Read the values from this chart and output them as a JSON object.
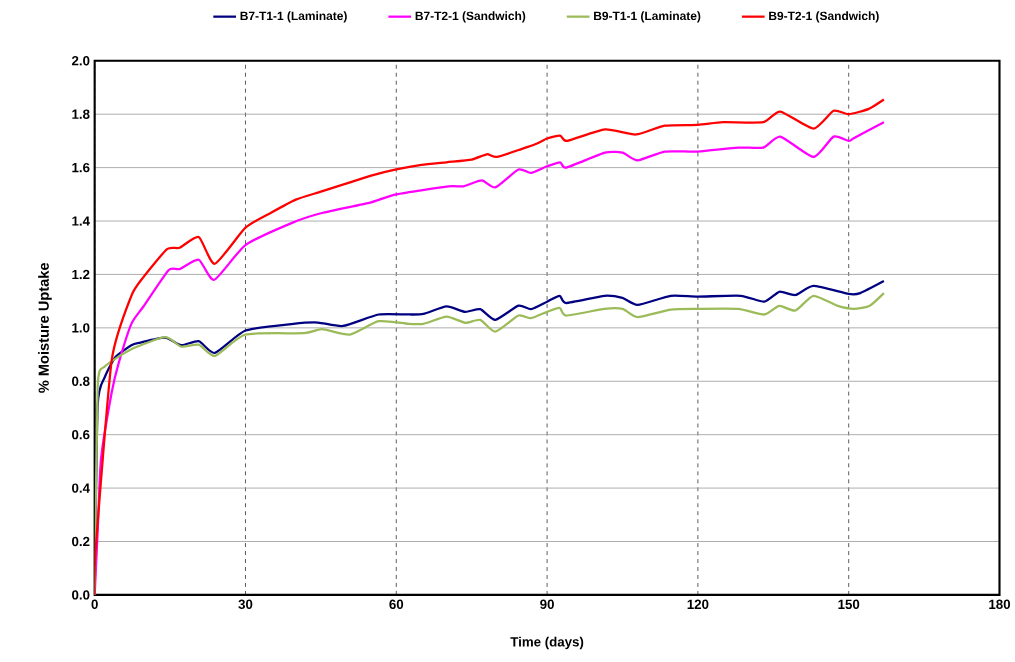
{
  "chart_data": {
    "type": "line",
    "xlabel": "Time (days)",
    "ylabel": "% Moisture Uptake",
    "xlim": [
      0,
      180
    ],
    "xticks": [
      0,
      30,
      60,
      90,
      120,
      150,
      180
    ],
    "ylim": [
      0,
      2.0
    ],
    "yticks": [
      {
        "value": 0,
        "label": "0.0"
      },
      {
        "value": 0.2,
        "label": "0.2"
      },
      {
        "value": 0.4,
        "label": "0.4"
      },
      {
        "value": 0.6,
        "label": "0.6"
      },
      {
        "value": 0.8,
        "label": "0.8"
      },
      {
        "value": 1.0,
        "label": "1.0"
      },
      {
        "value": 1.2,
        "label": "1.2"
      },
      {
        "value": 1.4,
        "label": "1.4"
      },
      {
        "value": 1.6,
        "label": "1.6"
      },
      {
        "value": 1.8,
        "label": "1.8"
      },
      {
        "value": 2.0,
        "label": "2.0"
      }
    ],
    "grid": true,
    "legend": "top",
    "marker": "none",
    "line_style": "solid",
    "series": [
      {
        "name": "B7-T1-1 (Laminate)",
        "color": "#000080",
        "x": [
          0,
          0.6,
          2,
          4.1,
          7.3,
          9.1,
          14,
          17.2,
          20.7,
          23.9,
          30,
          39.5,
          44.4,
          49.4,
          56.5,
          62.4,
          65.4,
          70,
          73.7,
          76.7,
          79.7,
          84.3,
          86.8,
          90,
          92.5,
          93.8,
          101.4,
          105,
          108,
          114.6,
          120,
          128.5,
          133.2,
          136.2,
          139.4,
          143,
          150,
          152.3,
          157
        ],
        "values": [
          0,
          0.71,
          0.815,
          0.89,
          0.935,
          0.945,
          0.963,
          0.935,
          0.95,
          0.906,
          0.99,
          1.015,
          1.02,
          1.007,
          1.05,
          1.05,
          1.052,
          1.08,
          1.06,
          1.07,
          1.03,
          1.083,
          1.07,
          1.098,
          1.12,
          1.093,
          1.12,
          1.112,
          1.086,
          1.12,
          1.117,
          1.12,
          1.098,
          1.135,
          1.123,
          1.157,
          1.127,
          1.13,
          1.175
        ]
      },
      {
        "name": "B7-T2-1 (Sandwich)",
        "color": "#ff00ff",
        "x": [
          0,
          0.6,
          1.27,
          3.4,
          4.8,
          7.3,
          9.7,
          14.7,
          16.9,
          20.7,
          23.8,
          30,
          39.5,
          45.2,
          55,
          60,
          70.4,
          73.4,
          77,
          79.7,
          84.3,
          86.8,
          90,
          92.6,
          93.8,
          101.5,
          105,
          108,
          113.4,
          120,
          128,
          133,
          136.4,
          143,
          147,
          150,
          151,
          157
        ],
        "values": [
          0,
          0.24,
          0.51,
          0.76,
          0.87,
          1.015,
          1.08,
          1.216,
          1.22,
          1.255,
          1.18,
          1.31,
          1.395,
          1.43,
          1.47,
          1.5,
          1.53,
          1.53,
          1.552,
          1.526,
          1.593,
          1.58,
          1.605,
          1.62,
          1.6,
          1.656,
          1.656,
          1.627,
          1.66,
          1.66,
          1.675,
          1.675,
          1.716,
          1.64,
          1.716,
          1.7,
          1.71,
          1.77
        ]
      },
      {
        "name": "B9-T1-1 (Laminate)",
        "color": "#9bbb59",
        "x": [
          0,
          0.6,
          2,
          7.3,
          14,
          17.2,
          20.7,
          23.9,
          30,
          41.6,
          45.2,
          50.8,
          56.5,
          62.4,
          65.4,
          70,
          73.7,
          76.7,
          79.7,
          84.3,
          86.8,
          90,
          92.5,
          93.8,
          101.4,
          105,
          108,
          114.6,
          120,
          128,
          133.2,
          136.2,
          139.4,
          143,
          147.7,
          151,
          154.2,
          157
        ],
        "values": [
          0,
          0.78,
          0.855,
          0.92,
          0.965,
          0.93,
          0.937,
          0.895,
          0.975,
          0.98,
          0.995,
          0.975,
          1.025,
          1.015,
          1.015,
          1.042,
          1.019,
          1.03,
          0.986,
          1.046,
          1.036,
          1.06,
          1.075,
          1.046,
          1.071,
          1.071,
          1.04,
          1.068,
          1.071,
          1.071,
          1.05,
          1.082,
          1.065,
          1.12,
          1.083,
          1.071,
          1.083,
          1.13
        ]
      },
      {
        "name": "B9-T2-1 (Sandwich)",
        "color": "#ff0000",
        "x": [
          0,
          0.2,
          3.4,
          7.3,
          9.7,
          14.4,
          16.9,
          20.7,
          23.9,
          30,
          35,
          40,
          45,
          50,
          55,
          60,
          65,
          70,
          75,
          78,
          80,
          85,
          88,
          90,
          92.6,
          94,
          101.5,
          107.7,
          113.4,
          120,
          125,
          133,
          136.4,
          143,
          147,
          150,
          154,
          157
        ],
        "values": [
          0,
          0.17,
          0.88,
          1.12,
          1.19,
          1.295,
          1.3,
          1.34,
          1.24,
          1.375,
          1.43,
          1.48,
          1.51,
          1.54,
          1.57,
          1.593,
          1.61,
          1.62,
          1.63,
          1.65,
          1.64,
          1.67,
          1.69,
          1.709,
          1.72,
          1.7,
          1.743,
          1.724,
          1.757,
          1.76,
          1.77,
          1.77,
          1.81,
          1.746,
          1.813,
          1.8,
          1.82,
          1.855
        ]
      }
    ]
  }
}
